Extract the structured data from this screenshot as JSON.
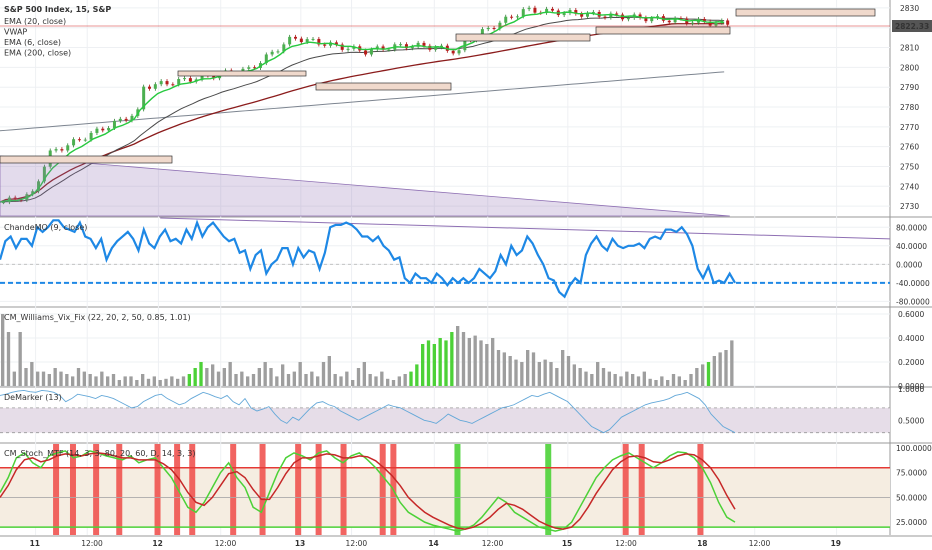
{
  "header": {
    "symbol": "S&P 500 Index, 15, S&P",
    "indicators": [
      "EMA (20, close)",
      "VWAP",
      "EMA (6, close)",
      "EMA (200, close)"
    ],
    "last_price": "2822.33"
  },
  "panes": {
    "price": {
      "ticks": [
        2730,
        2740,
        2750,
        2760,
        2770,
        2780,
        2790,
        2800,
        2810,
        2820,
        2830
      ],
      "ylim": [
        2725,
        2834
      ],
      "boxes": [
        [
          0.0,
          0.0
        ],
        [
          0.0,
          0.0
        ]
      ]
    },
    "cmo": {
      "title": "ChandeMO (9, close)",
      "ticks": [
        "80.0000",
        "40.0000",
        "0.0000",
        "-40.0000",
        "-80.0000"
      ],
      "tick_values": [
        80,
        40,
        0,
        -40,
        -80
      ],
      "ylim": [
        -90,
        100
      ],
      "level": -40,
      "trend_line": [
        [
          0.18,
          100
        ],
        [
          1.0,
          55
        ]
      ],
      "series": [
        10,
        50,
        60,
        35,
        55,
        55,
        40,
        80,
        70,
        80,
        95,
        95,
        80,
        75,
        70,
        90,
        60,
        55,
        35,
        55,
        10,
        35,
        50,
        60,
        70,
        55,
        30,
        75,
        45,
        35,
        60,
        75,
        50,
        55,
        45,
        75,
        55,
        90,
        60,
        80,
        90,
        75,
        60,
        50,
        55,
        25,
        30,
        -10,
        20,
        30,
        -20,
        0,
        10,
        35,
        35,
        0,
        35,
        15,
        30,
        25,
        -10,
        25,
        80,
        85,
        85,
        90,
        85,
        75,
        60,
        60,
        50,
        60,
        40,
        30,
        10,
        15,
        -30,
        -40,
        -20,
        -30,
        -30,
        -40,
        -20,
        -30,
        -45,
        -30,
        -40,
        -30,
        -40,
        -30,
        -10,
        -20,
        -30,
        -15,
        20,
        0,
        40,
        20,
        30,
        60,
        45,
        20,
        0,
        -30,
        -35,
        -60,
        -70,
        -45,
        -30,
        -40,
        20,
        45,
        60,
        40,
        30,
        55,
        40,
        35,
        40,
        40,
        45,
        35,
        55,
        60,
        55,
        75,
        75,
        70,
        80,
        65,
        40,
        -10,
        -30,
        -5,
        -40,
        -35,
        -40,
        -20,
        -40
      ]
    },
    "vix": {
      "title": "CM_Williams_Vix_Fix (22, 20, 2, 50, 0.85, 1.01)",
      "ticks": [
        "0.6000",
        "0.4000",
        "0.2000",
        "0.0000"
      ],
      "tick_values": [
        0.6,
        0.4,
        0.2,
        0.0
      ],
      "ylim": [
        0,
        0.65
      ],
      "series": [
        0.6,
        0.45,
        0.12,
        0.45,
        0.15,
        0.2,
        0.12,
        0.12,
        0.1,
        0.15,
        0.12,
        0.1,
        0.08,
        0.15,
        0.12,
        0.1,
        0.08,
        0.12,
        0.08,
        0.1,
        0.05,
        0.08,
        0.08,
        0.05,
        0.1,
        0.06,
        0.08,
        0.05,
        0.06,
        0.08,
        0.06,
        0.08,
        0.1,
        0.15,
        0.2,
        0.15,
        0.18,
        0.12,
        0.15,
        0.2,
        0.1,
        0.12,
        0.08,
        0.1,
        0.15,
        0.2,
        0.15,
        0.08,
        0.18,
        0.1,
        0.12,
        0.2,
        0.1,
        0.12,
        0.08,
        0.2,
        0.25,
        0.1,
        0.08,
        0.12,
        0.05,
        0.15,
        0.2,
        0.1,
        0.08,
        0.12,
        0.06,
        0.05,
        0.08,
        0.1,
        0.12,
        0.18,
        0.35,
        0.38,
        0.35,
        0.4,
        0.38,
        0.45,
        0.5,
        0.45,
        0.4,
        0.42,
        0.38,
        0.35,
        0.4,
        0.3,
        0.28,
        0.25,
        0.22,
        0.2,
        0.3,
        0.28,
        0.2,
        0.22,
        0.2,
        0.15,
        0.3,
        0.25,
        0.18,
        0.15,
        0.12,
        0.1,
        0.2,
        0.15,
        0.12,
        0.1,
        0.08,
        0.12,
        0.1,
        0.08,
        0.12,
        0.06,
        0.05,
        0.08,
        0.05,
        0.1,
        0.08,
        0.05,
        0.1,
        0.15,
        0.18,
        0.2,
        0.25,
        0.28,
        0.3,
        0.38
      ],
      "green_idx": [
        32,
        33,
        34,
        70,
        71,
        72,
        73,
        74,
        75,
        76,
        77,
        121
      ]
    },
    "demarker": {
      "title": "DeMarker (13)",
      "ticks": [
        "1.0000",
        "0.5000"
      ],
      "tick_values": [
        1.0,
        0.5
      ],
      "ylim": [
        0.15,
        1.02
      ],
      "band": [
        0.3,
        0.7
      ],
      "series": [
        0.9,
        0.92,
        0.95,
        0.97,
        0.98,
        0.96,
        0.95,
        0.98,
        0.97,
        0.95,
        0.9,
        0.8,
        0.85,
        0.92,
        0.9,
        0.88,
        0.85,
        0.9,
        0.88,
        0.85,
        0.8,
        0.75,
        0.7,
        0.72,
        0.8,
        0.85,
        0.9,
        0.92,
        0.85,
        0.8,
        0.75,
        0.78,
        0.85,
        0.9,
        0.95,
        0.92,
        0.88,
        0.85,
        0.9,
        0.8,
        0.75,
        0.85,
        0.7,
        0.65,
        0.68,
        0.72,
        0.6,
        0.5,
        0.45,
        0.55,
        0.5,
        0.6,
        0.7,
        0.78,
        0.8,
        0.75,
        0.72,
        0.65,
        0.6,
        0.55,
        0.5,
        0.55,
        0.6,
        0.65,
        0.7,
        0.75,
        0.72,
        0.7,
        0.65,
        0.6,
        0.55,
        0.5,
        0.48,
        0.45,
        0.52,
        0.6,
        0.55,
        0.5,
        0.48,
        0.45,
        0.5,
        0.55,
        0.6,
        0.65,
        0.7,
        0.72,
        0.75,
        0.8,
        0.85,
        0.9,
        0.88,
        0.92,
        0.95,
        0.9,
        0.85,
        0.8,
        0.7,
        0.6,
        0.5,
        0.4,
        0.35,
        0.3,
        0.35,
        0.45,
        0.55,
        0.6,
        0.65,
        0.7,
        0.75,
        0.78,
        0.8,
        0.82,
        0.85,
        0.9,
        0.92,
        0.95,
        0.9,
        0.85,
        0.75,
        0.6,
        0.5,
        0.4,
        0.35,
        0.3
      ]
    },
    "stoch": {
      "title": "CM_Stoch_MTF (14, 3, 3, 80, 20, 60, D, 14, 3, 3)",
      "ticks": [
        "100.0000",
        "75.0000",
        "50.0000",
        "25.0000"
      ],
      "tick_values": [
        100,
        75,
        50,
        25
      ],
      "ylim": [
        12,
        104
      ],
      "levels": [
        80,
        20,
        50
      ],
      "red_bars": [
        0.063,
        0.082,
        0.108,
        0.134,
        0.177,
        0.199,
        0.216,
        0.262,
        0.295,
        0.335,
        0.358,
        0.386,
        0.43,
        0.442,
        0.703,
        0.721,
        0.787
      ],
      "green_bars": [
        0.514,
        0.616
      ],
      "k": [
        55,
        70,
        90,
        95,
        85,
        80,
        92,
        95,
        97,
        90,
        92,
        97,
        95,
        92,
        90,
        88,
        92,
        85,
        88,
        90,
        80,
        70,
        55,
        40,
        35,
        45,
        60,
        75,
        85,
        70,
        60,
        40,
        35,
        55,
        75,
        90,
        95,
        92,
        88,
        95,
        97,
        90,
        85,
        92,
        95,
        88,
        80,
        70,
        60,
        45,
        35,
        30,
        25,
        22,
        20,
        18,
        16,
        18,
        22,
        30,
        40,
        50,
        45,
        35,
        30,
        25,
        20,
        18,
        16,
        18,
        25,
        40,
        55,
        70,
        80,
        88,
        92,
        95,
        90,
        85,
        80,
        85,
        92,
        96,
        95,
        90,
        80,
        65,
        45,
        30,
        25
      ],
      "d": [
        50,
        62,
        78,
        88,
        90,
        86,
        88,
        92,
        94,
        93,
        92,
        94,
        95,
        94,
        92,
        90,
        90,
        88,
        88,
        88,
        84,
        78,
        68,
        55,
        45,
        42,
        50,
        62,
        74,
        76,
        70,
        58,
        48,
        48,
        60,
        74,
        85,
        90,
        90,
        92,
        94,
        93,
        90,
        90,
        92,
        91,
        87,
        80,
        72,
        62,
        50,
        42,
        35,
        30,
        26,
        22,
        19,
        18,
        20,
        24,
        30,
        38,
        44,
        42,
        38,
        32,
        26,
        22,
        19,
        18,
        20,
        28,
        40,
        54,
        66,
        78,
        86,
        91,
        92,
        90,
        86,
        85,
        88,
        92,
        94,
        93,
        88,
        80,
        68,
        52,
        38
      ]
    }
  },
  "x_axis": {
    "labels": [
      "11",
      "12:00",
      "12",
      "12:00",
      "13",
      "12:00",
      "14",
      "12:00",
      "15",
      "12:00",
      "18",
      "12:00",
      "19"
    ],
    "bold": [
      true,
      false,
      true,
      false,
      true,
      false,
      true,
      false,
      true,
      false,
      true,
      false,
      true
    ],
    "positions": [
      0.04,
      0.098,
      0.178,
      0.248,
      0.338,
      0.395,
      0.488,
      0.548,
      0.638,
      0.698,
      0.79,
      0.848,
      0.94
    ]
  }
}
